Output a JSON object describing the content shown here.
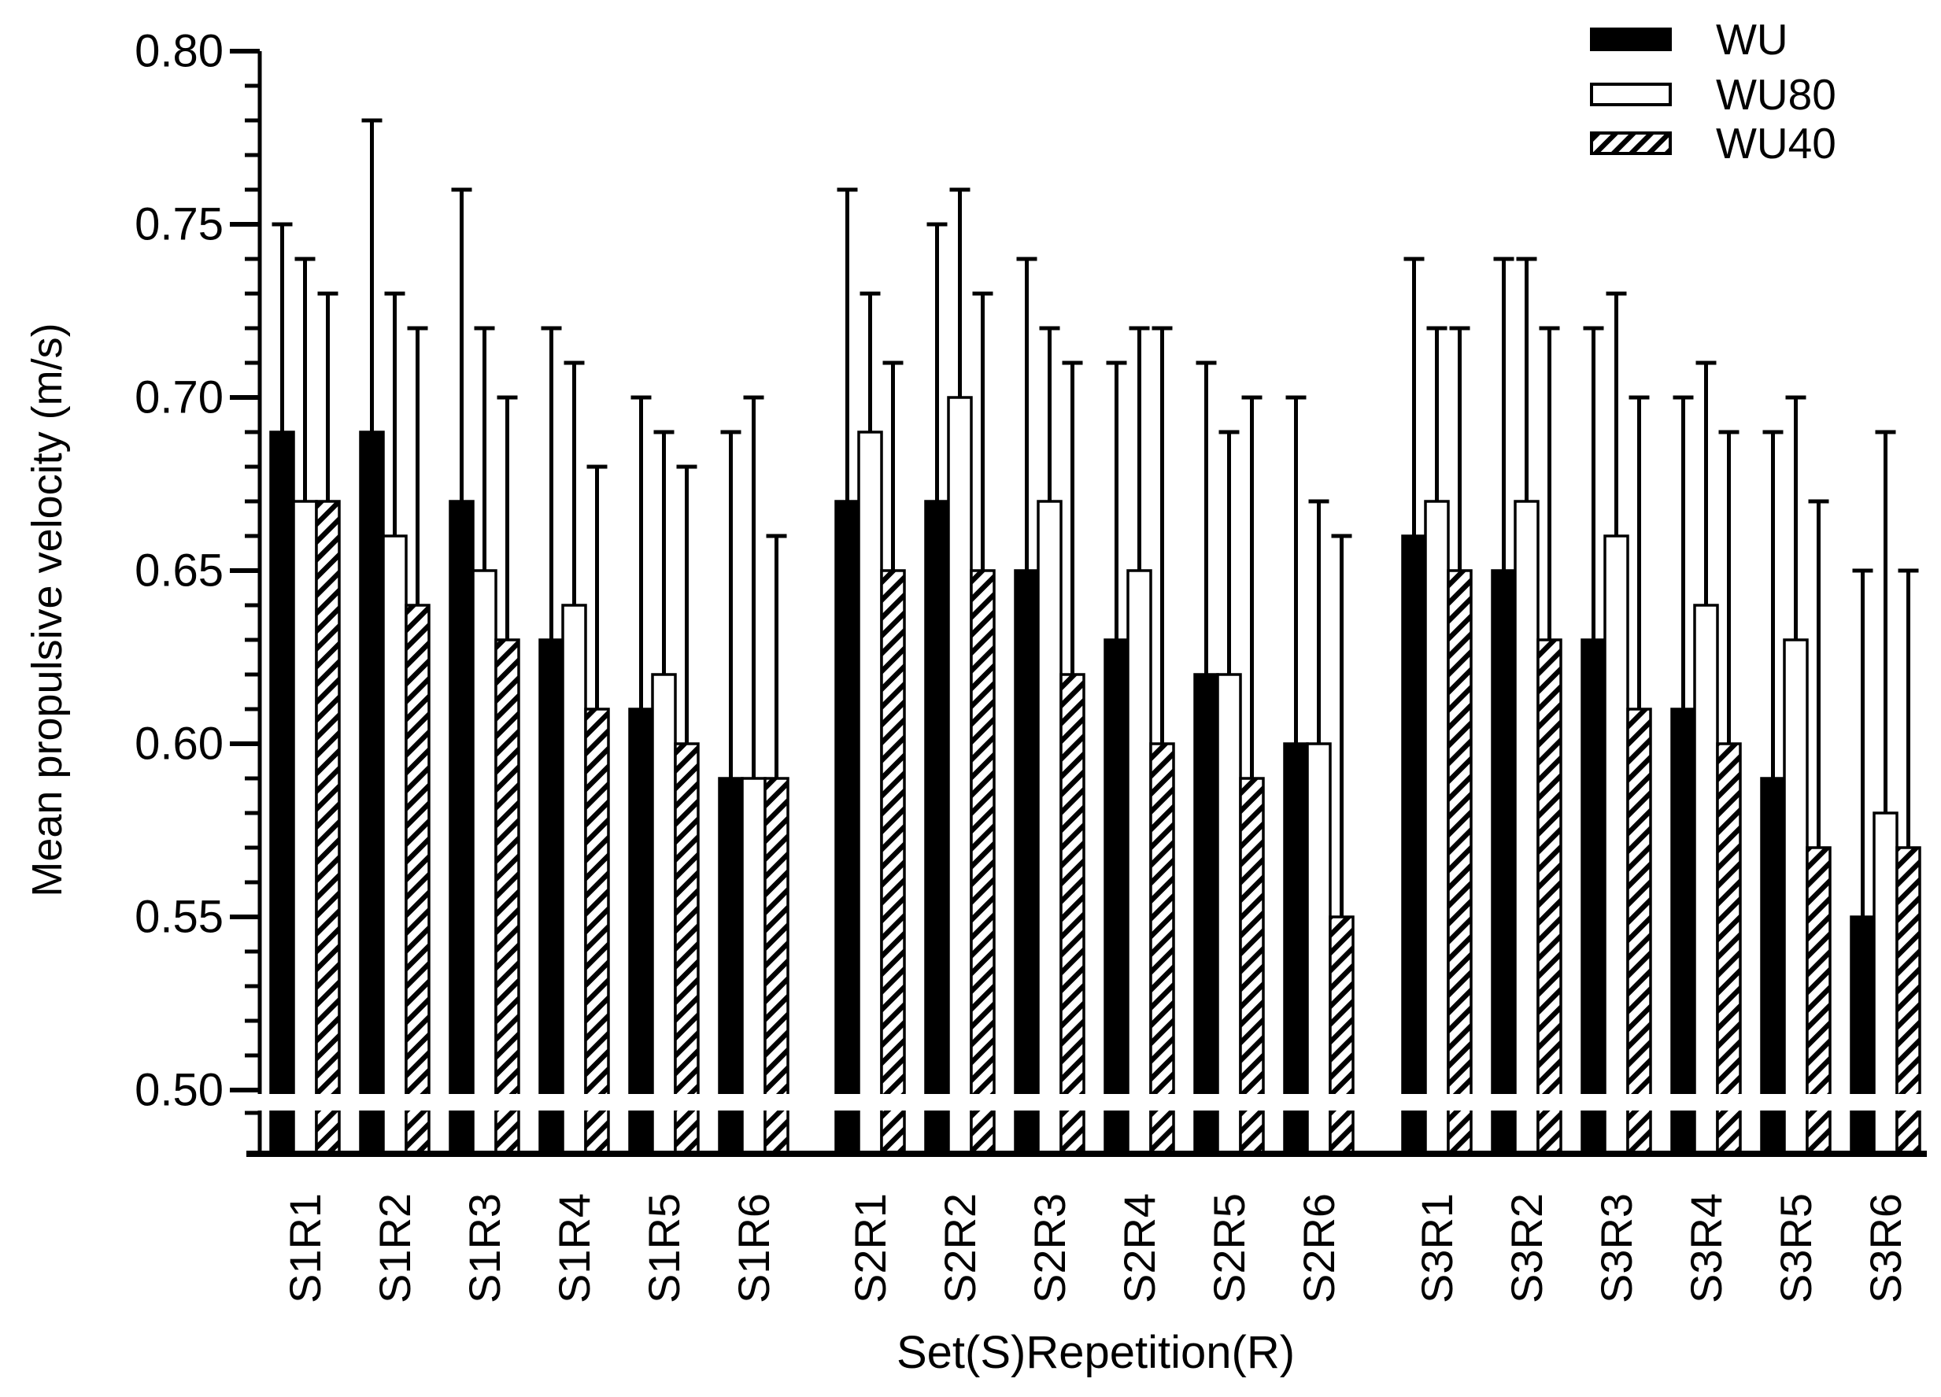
{
  "figure": {
    "background": "#ffffff",
    "ink_color": "#000000"
  },
  "chart_data": {
    "type": "bar",
    "title": "",
    "xlabel": "Set(S)Repetition(R)",
    "ylabel": "Mean propulsive velocity (m/s)",
    "ylim": [
      0.5,
      0.8
    ],
    "y_major_step": 0.05,
    "y_minor_step": 0.01,
    "y_tick_labels": [
      "0.80",
      "0.75",
      "0.70",
      "0.65",
      "0.60",
      "0.55",
      "0.50"
    ],
    "y_axis_break_below": 0.5,
    "grid": false,
    "legend_position": "top-right",
    "error_bars": "upper whisker only (mean + SD)",
    "categories": [
      "S1R1",
      "S1R2",
      "S1R3",
      "S1R4",
      "S1R5",
      "S1R6",
      "S2R1",
      "S2R2",
      "S2R3",
      "S2R4",
      "S2R5",
      "S2R6",
      "S3R1",
      "S3R2",
      "S3R3",
      "S3R4",
      "S3R5",
      "S3R6"
    ],
    "set_groups": [
      [
        "S1R1",
        "S1R6"
      ],
      [
        "S2R1",
        "S2R6"
      ],
      [
        "S3R1",
        "S3R6"
      ]
    ],
    "series": [
      {
        "name": "WU",
        "style": "solid-black",
        "values": [
          0.69,
          0.69,
          0.67,
          0.63,
          0.61,
          0.59,
          0.67,
          0.67,
          0.65,
          0.63,
          0.62,
          0.6,
          0.66,
          0.65,
          0.63,
          0.61,
          0.59,
          0.55
        ],
        "error_top": [
          0.75,
          0.78,
          0.76,
          0.72,
          0.7,
          0.69,
          0.76,
          0.75,
          0.74,
          0.71,
          0.71,
          0.7,
          0.74,
          0.74,
          0.72,
          0.7,
          0.69,
          0.65
        ]
      },
      {
        "name": "WU80",
        "style": "open-white",
        "values": [
          0.67,
          0.66,
          0.65,
          0.64,
          0.62,
          0.59,
          0.69,
          0.7,
          0.67,
          0.65,
          0.62,
          0.6,
          0.67,
          0.67,
          0.66,
          0.64,
          0.63,
          0.58
        ],
        "error_top": [
          0.74,
          0.73,
          0.72,
          0.71,
          0.69,
          0.7,
          0.73,
          0.76,
          0.72,
          0.72,
          0.69,
          0.67,
          0.72,
          0.74,
          0.73,
          0.71,
          0.7,
          0.69
        ]
      },
      {
        "name": "WU40",
        "style": "hatched-diagonal",
        "values": [
          0.67,
          0.64,
          0.63,
          0.61,
          0.6,
          0.59,
          0.65,
          0.65,
          0.62,
          0.6,
          0.59,
          0.55,
          0.65,
          0.63,
          0.61,
          0.6,
          0.57,
          0.57
        ],
        "error_top": [
          0.73,
          0.72,
          0.7,
          0.68,
          0.68,
          0.66,
          0.71,
          0.73,
          0.71,
          0.72,
          0.7,
          0.66,
          0.72,
          0.72,
          0.7,
          0.69,
          0.67,
          0.65
        ]
      }
    ]
  },
  "legend": {
    "items": [
      {
        "label": "WU",
        "swatch": "solid-black-swatch"
      },
      {
        "label": "WU80",
        "swatch": "open-white-swatch"
      },
      {
        "label": "WU40",
        "swatch": "hatched-swatch"
      }
    ]
  }
}
